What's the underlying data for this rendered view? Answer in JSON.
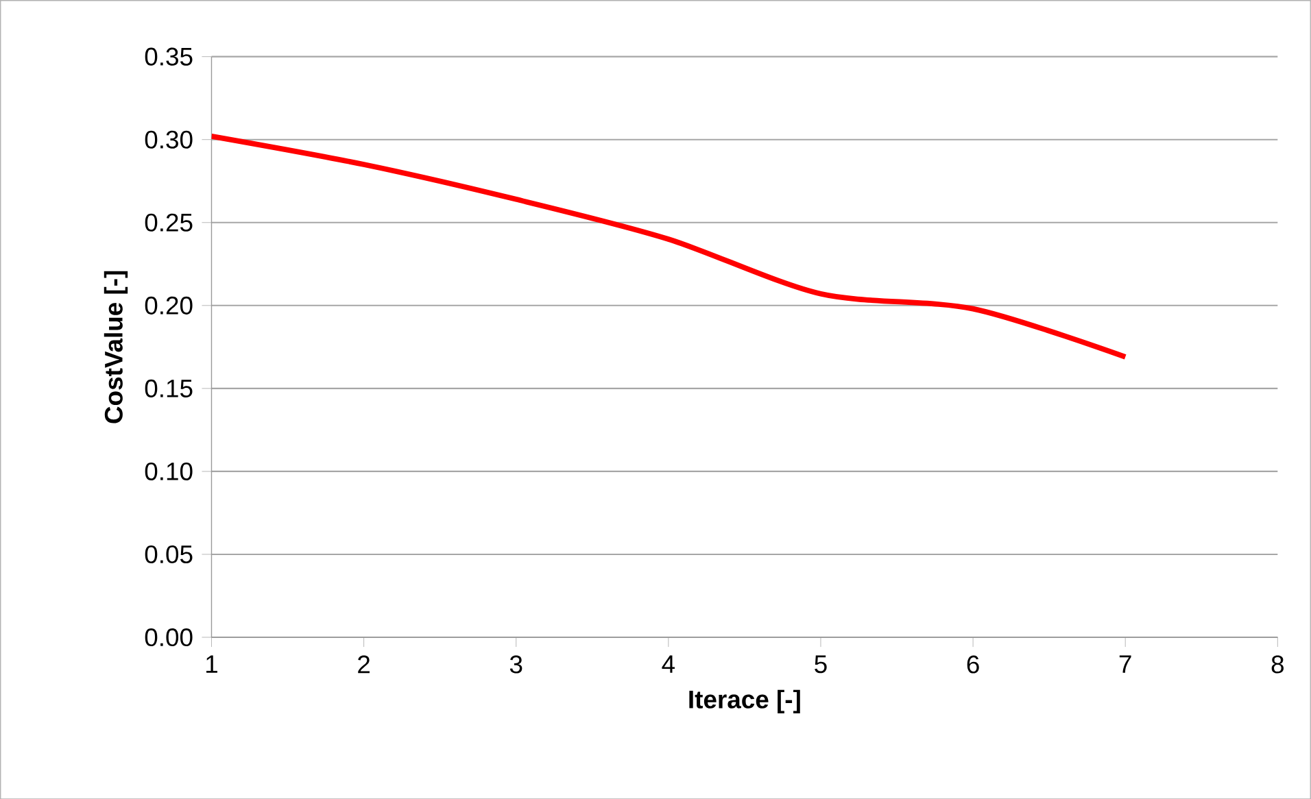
{
  "chart_data": {
    "type": "line",
    "xlabel": "Iterace [-]",
    "ylabel": "CostValue [-]",
    "x": [
      1,
      2,
      3,
      4,
      5,
      6,
      7
    ],
    "series": [
      {
        "color": "#ff0000",
        "values": [
          0.302,
          0.285,
          0.264,
          0.24,
          0.207,
          0.198,
          0.169
        ]
      }
    ],
    "xlim": [
      1,
      8
    ],
    "xticks": [
      1,
      2,
      3,
      4,
      5,
      6,
      7,
      8
    ],
    "ylim": [
      0,
      0.35
    ],
    "yticks": [
      {
        "value": 0,
        "label": "0.00"
      },
      {
        "value": 0.05,
        "label": "0.05"
      },
      {
        "value": 0.1,
        "label": "0.10"
      },
      {
        "value": 0.15,
        "label": "0.15"
      },
      {
        "value": 0.2,
        "label": "0.20"
      },
      {
        "value": 0.25,
        "label": "0.25"
      },
      {
        "value": 0.3,
        "label": "0.30"
      },
      {
        "value": 0.35,
        "label": "0.35"
      }
    ],
    "grid": "y",
    "marker": "none",
    "line_style": "solid"
  }
}
